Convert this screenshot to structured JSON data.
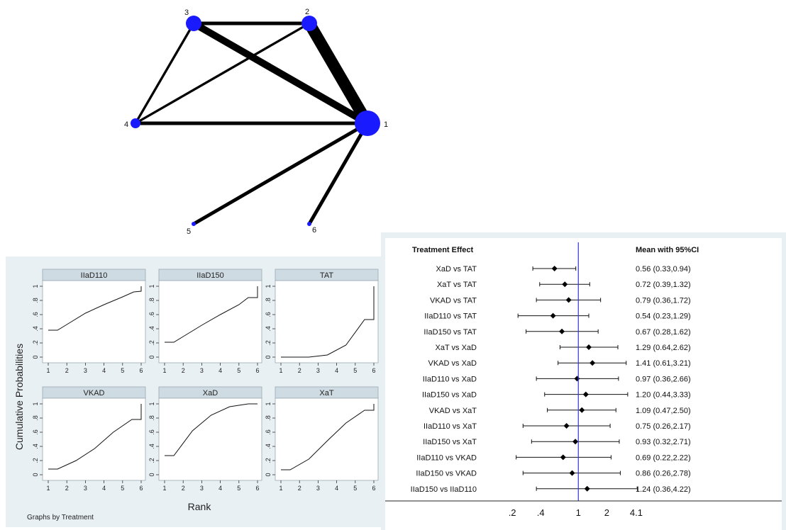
{
  "chart_data": [
    {
      "type": "network",
      "nodes": [
        {
          "id": "1",
          "label": "1",
          "size": "large"
        },
        {
          "id": "2",
          "label": "2",
          "size": "medium"
        },
        {
          "id": "3",
          "label": "3",
          "size": "medium"
        },
        {
          "id": "4",
          "label": "4",
          "size": "small"
        },
        {
          "id": "5",
          "label": "5",
          "size": "tiny"
        },
        {
          "id": "6",
          "label": "6",
          "size": "tiny"
        }
      ],
      "edges": [
        {
          "from": "3",
          "to": "2",
          "weight": 3
        },
        {
          "from": "3",
          "to": "1",
          "weight": 6
        },
        {
          "from": "2",
          "to": "1",
          "weight": 10
        },
        {
          "from": "3",
          "to": "4",
          "weight": 2
        },
        {
          "from": "2",
          "to": "4",
          "weight": 2
        },
        {
          "from": "4",
          "to": "1",
          "weight": 3
        },
        {
          "from": "5",
          "to": "1",
          "weight": 3
        },
        {
          "from": "6",
          "to": "1",
          "weight": 3
        }
      ],
      "node_color": "#1a1aff"
    },
    {
      "type": "line",
      "ylabel": "Cumulative Probabilities",
      "xlabel": "Rank",
      "note": "Graphs by Treatment",
      "xlim": [
        1,
        6
      ],
      "ylim": [
        0,
        1
      ],
      "xticks": [
        "1",
        "2",
        "3",
        "4",
        "5",
        "6"
      ],
      "yticks": [
        "0",
        ".2",
        ".4",
        ".6",
        ".8",
        "1"
      ],
      "panels": [
        {
          "name": "IIaD110",
          "x": [
            1,
            1.5,
            2,
            3,
            4,
            5,
            5.6,
            6,
            6
          ],
          "y": [
            0.38,
            0.38,
            0.46,
            0.62,
            0.74,
            0.85,
            0.92,
            0.93,
            1.0
          ]
        },
        {
          "name": "IIaD150",
          "x": [
            1,
            1.5,
            2,
            3,
            4,
            5,
            5.5,
            6,
            6
          ],
          "y": [
            0.21,
            0.21,
            0.29,
            0.45,
            0.6,
            0.74,
            0.84,
            0.84,
            1.0
          ]
        },
        {
          "name": "TAT",
          "x": [
            1,
            2.5,
            3.5,
            4.5,
            5.5,
            6,
            6
          ],
          "y": [
            0.0,
            0.0,
            0.03,
            0.17,
            0.53,
            0.53,
            1.0
          ]
        },
        {
          "name": "VKAD",
          "x": [
            1,
            1.5,
            2.5,
            3.5,
            4.5,
            5.5,
            6,
            6
          ],
          "y": [
            0.08,
            0.08,
            0.2,
            0.37,
            0.6,
            0.78,
            0.78,
            1.0
          ]
        },
        {
          "name": "XaD",
          "x": [
            1,
            1.5,
            2.5,
            3.5,
            4.5,
            5.5,
            6
          ],
          "y": [
            0.27,
            0.27,
            0.62,
            0.84,
            0.96,
            1.0,
            1.0
          ]
        },
        {
          "name": "XaT",
          "x": [
            1,
            1.5,
            2.5,
            3.5,
            4.5,
            5.5,
            6,
            6
          ],
          "y": [
            0.07,
            0.07,
            0.22,
            0.48,
            0.73,
            0.91,
            0.91,
            1.0
          ]
        }
      ]
    },
    {
      "type": "forest",
      "header_left": "Treatment Effect",
      "header_right": "Mean with 95%CI",
      "xscale": "log",
      "xticks": [
        {
          "value": 0.2,
          "label": ".2"
        },
        {
          "value": 0.4,
          "label": ".4"
        },
        {
          "value": 1,
          "label": "1"
        },
        {
          "value": 2,
          "label": "2"
        },
        {
          "value": 4.1,
          "label": "4.1"
        }
      ],
      "reference_line": 1,
      "rows": [
        {
          "label": "XaD vs TAT",
          "mean": 0.56,
          "lo": 0.33,
          "hi": 0.94,
          "text": "0.56 (0.33,0.94)"
        },
        {
          "label": "XaT vs TAT",
          "mean": 0.72,
          "lo": 0.39,
          "hi": 1.32,
          "text": "0.72 (0.39,1.32)"
        },
        {
          "label": "VKAD vs TAT",
          "mean": 0.79,
          "lo": 0.36,
          "hi": 1.72,
          "text": "0.79 (0.36,1.72)"
        },
        {
          "label": "IIaD110 vs TAT",
          "mean": 0.54,
          "lo": 0.23,
          "hi": 1.29,
          "text": "0.54 (0.23,1.29)"
        },
        {
          "label": "IIaD150 vs TAT",
          "mean": 0.67,
          "lo": 0.28,
          "hi": 1.62,
          "text": "0.67 (0.28,1.62)"
        },
        {
          "label": "XaT vs XaD",
          "mean": 1.29,
          "lo": 0.64,
          "hi": 2.62,
          "text": "1.29 (0.64,2.62)"
        },
        {
          "label": "VKAD vs XaD",
          "mean": 1.41,
          "lo": 0.61,
          "hi": 3.21,
          "text": "1.41 (0.61,3.21)"
        },
        {
          "label": "IIaD110 vs XaD",
          "mean": 0.97,
          "lo": 0.36,
          "hi": 2.66,
          "text": "0.97 (0.36,2.66)"
        },
        {
          "label": "IIaD150 vs XaD",
          "mean": 1.2,
          "lo": 0.44,
          "hi": 3.33,
          "text": "1.20 (0.44,3.33)"
        },
        {
          "label": "VKAD vs XaT",
          "mean": 1.09,
          "lo": 0.47,
          "hi": 2.5,
          "text": "1.09 (0.47,2.50)"
        },
        {
          "label": "IIaD110 vs XaT",
          "mean": 0.75,
          "lo": 0.26,
          "hi": 2.17,
          "text": "0.75 (0.26,2.17)"
        },
        {
          "label": "IIaD150 vs XaT",
          "mean": 0.93,
          "lo": 0.32,
          "hi": 2.71,
          "text": "0.93 (0.32,2.71)"
        },
        {
          "label": "IIaD110 vs VKAD",
          "mean": 0.69,
          "lo": 0.22,
          "hi": 2.22,
          "text": "0.69 (0.22,2.22)"
        },
        {
          "label": "IIaD150 vs VKAD",
          "mean": 0.86,
          "lo": 0.26,
          "hi": 2.78,
          "text": "0.86 (0.26,2.78)"
        },
        {
          "label": "IIaD150 vs IIaD110",
          "mean": 1.24,
          "lo": 0.36,
          "hi": 4.22,
          "text": "1.24 (0.36,4.22)"
        }
      ],
      "reference_line_color": "#3333dd"
    }
  ]
}
